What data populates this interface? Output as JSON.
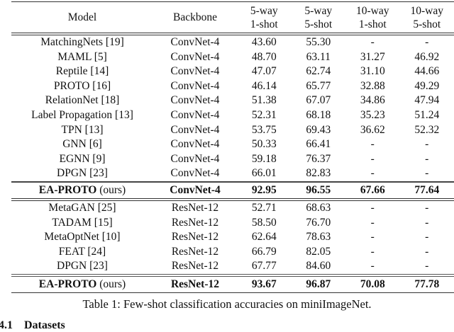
{
  "table": {
    "headers": {
      "model": "Model",
      "backbone": "Backbone",
      "col1_top": "5-way",
      "col1_bottom": "1-shot",
      "col2_top": "5-way",
      "col2_bottom": "5-shot",
      "col3_top": "10-way",
      "col3_bottom": "1-shot",
      "col4_top": "10-way",
      "col4_bottom": "5-shot"
    },
    "convnet_rows": [
      {
        "model": "MatchingNets [19]",
        "backbone": "ConvNet-4",
        "v1": "43.60",
        "v2": "55.30",
        "v3": "-",
        "v4": "-"
      },
      {
        "model": "MAML [5]",
        "backbone": "ConvNet-4",
        "v1": "48.70",
        "v2": "63.11",
        "v3": "31.27",
        "v4": "46.92"
      },
      {
        "model": "Reptile [14]",
        "backbone": "ConvNet-4",
        "v1": "47.07",
        "v2": "62.74",
        "v3": "31.10",
        "v4": "44.66"
      },
      {
        "model": "PROTO [16]",
        "backbone": "ConvNet-4",
        "v1": "46.14",
        "v2": "65.77",
        "v3": "32.88",
        "v4": "49.29"
      },
      {
        "model": "RelationNet [18]",
        "backbone": "ConvNet-4",
        "v1": "51.38",
        "v2": "67.07",
        "v3": "34.86",
        "v4": "47.94"
      },
      {
        "model": "Label Propagation [13]",
        "backbone": "ConvNet-4",
        "v1": "52.31",
        "v2": "68.18",
        "v3": "35.23",
        "v4": "51.24"
      },
      {
        "model": "TPN [13]",
        "backbone": "ConvNet-4",
        "v1": "53.75",
        "v2": "69.43",
        "v3": "36.62",
        "v4": "52.32"
      },
      {
        "model": "GNN [6]",
        "backbone": "ConvNet-4",
        "v1": "50.33",
        "v2": "66.41",
        "v3": "-",
        "v4": "-"
      },
      {
        "model": "EGNN [9]",
        "backbone": "ConvNet-4",
        "v1": "59.18",
        "v2": "76.37",
        "v3": "-",
        "v4": "-"
      },
      {
        "model": "DPGN [23]",
        "backbone": "ConvNet-4",
        "v1": "66.01",
        "v2": "82.83",
        "v3": "-",
        "v4": "-"
      }
    ],
    "convnet_ours": {
      "model_bold": "EA-PROTO",
      "model_suffix": " (ours)",
      "backbone": "ConvNet-4",
      "v1": "92.95",
      "v2": "96.55",
      "v3": "67.66",
      "v4": "77.64"
    },
    "resnet_rows": [
      {
        "model": "MetaGAN [25]",
        "backbone": "ResNet-12",
        "v1": "52.71",
        "v2": "68.63",
        "v3": "-",
        "v4": "-"
      },
      {
        "model": "TADAM [15]",
        "backbone": "ResNet-12",
        "v1": "58.50",
        "v2": "76.70",
        "v3": "-",
        "v4": "-"
      },
      {
        "model": "MetaOptNet [10]",
        "backbone": "ResNet-12",
        "v1": "62.64",
        "v2": "78.63",
        "v3": "-",
        "v4": "-"
      },
      {
        "model": "FEAT [24]",
        "backbone": "ResNet-12",
        "v1": "66.79",
        "v2": "82.05",
        "v3": "-",
        "v4": "-"
      },
      {
        "model": "DPGN [23]",
        "backbone": "ResNet-12",
        "v1": "67.77",
        "v2": "84.60",
        "v3": "-",
        "v4": "-"
      }
    ],
    "resnet_ours": {
      "model_bold": "EA-PROTO",
      "model_suffix": " (ours)",
      "backbone": "ResNet-12",
      "v1": "93.67",
      "v2": "96.87",
      "v3": "70.08",
      "v4": "77.78"
    }
  },
  "caption": "Table 1: Few-shot classification accuracies on miniImageNet.",
  "section": {
    "number": "4.1",
    "title": "Datasets"
  }
}
